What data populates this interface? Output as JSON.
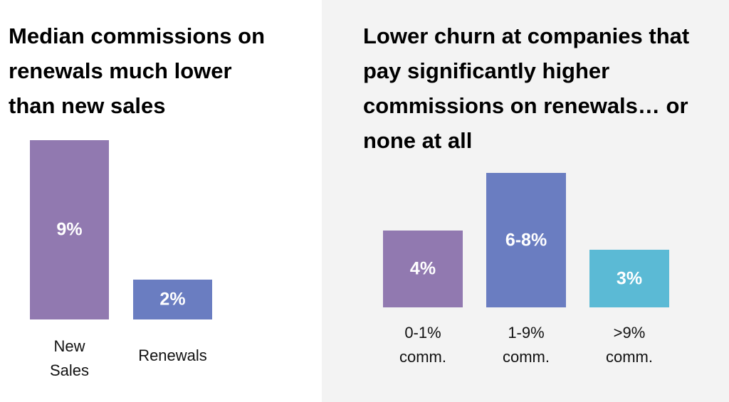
{
  "chart_data": [
    {
      "type": "bar",
      "title": "Median commissions on renewals much lower than new sales",
      "categories": [
        "New Sales",
        "Renewals"
      ],
      "values": [
        9,
        2
      ],
      "value_labels": [
        "9%",
        "2%"
      ],
      "colors": [
        "#9179b0",
        "#6a7dc1"
      ]
    },
    {
      "type": "bar",
      "title": "Lower churn at companies that pay significantly higher commissions on renewals… or none at all",
      "categories": [
        "0-1% comm.",
        "1-9% comm.",
        ">9% comm."
      ],
      "values": [
        4,
        7,
        3
      ],
      "value_labels": [
        "4%",
        "6-8%",
        "3%"
      ],
      "colors": [
        "#9179b0",
        "#6a7dc1",
        "#5bbad5"
      ]
    }
  ]
}
